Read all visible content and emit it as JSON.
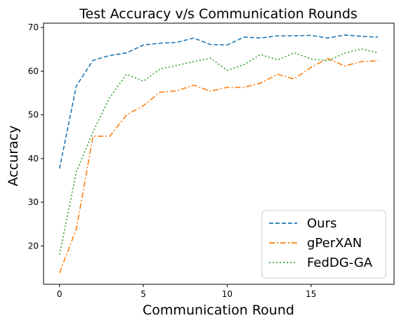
{
  "chart_data": {
    "type": "line",
    "title": "Test Accuracy v/s Communication Rounds",
    "xlabel": "Communication Round",
    "ylabel": "Accuracy",
    "xlim": [
      -0.95,
      19.95
    ],
    "ylim": [
      11.2,
      71.0
    ],
    "xticks": [
      0,
      5,
      10,
      15
    ],
    "yticks": [
      20,
      30,
      40,
      50,
      60,
      70
    ],
    "grid": false,
    "legend_position": "lower-right",
    "x": [
      0,
      1,
      2,
      3,
      4,
      5,
      6,
      7,
      8,
      9,
      10,
      11,
      12,
      13,
      14,
      15,
      16,
      17,
      18,
      19
    ],
    "series": [
      {
        "name": "Ours",
        "color": "#1f77b4",
        "dash": "dashed",
        "values": [
          37.7,
          56.6,
          62.5,
          63.6,
          64.2,
          66.0,
          66.4,
          66.6,
          67.6,
          66.1,
          66.0,
          67.8,
          67.6,
          68.1,
          68.1,
          68.2,
          67.6,
          68.3,
          68.0,
          67.8
        ]
      },
      {
        "name": "gPerXAN",
        "color": "#ff7f0e",
        "dash": "dashdot",
        "values": [
          13.8,
          23.8,
          45.1,
          45.1,
          50.0,
          52.1,
          55.2,
          55.5,
          56.8,
          55.4,
          56.3,
          56.3,
          57.3,
          59.3,
          58.2,
          60.9,
          62.9,
          61.2,
          62.2,
          62.4
        ]
      },
      {
        "name": "FedDG-GA",
        "color": "#2ca02c",
        "dash": "dotted",
        "values": [
          18.0,
          36.9,
          46.1,
          54.0,
          59.3,
          57.7,
          60.5,
          61.3,
          62.2,
          63.0,
          60.2,
          61.5,
          63.8,
          62.6,
          64.2,
          62.8,
          62.4,
          64.1,
          65.1,
          64.2
        ]
      }
    ]
  }
}
